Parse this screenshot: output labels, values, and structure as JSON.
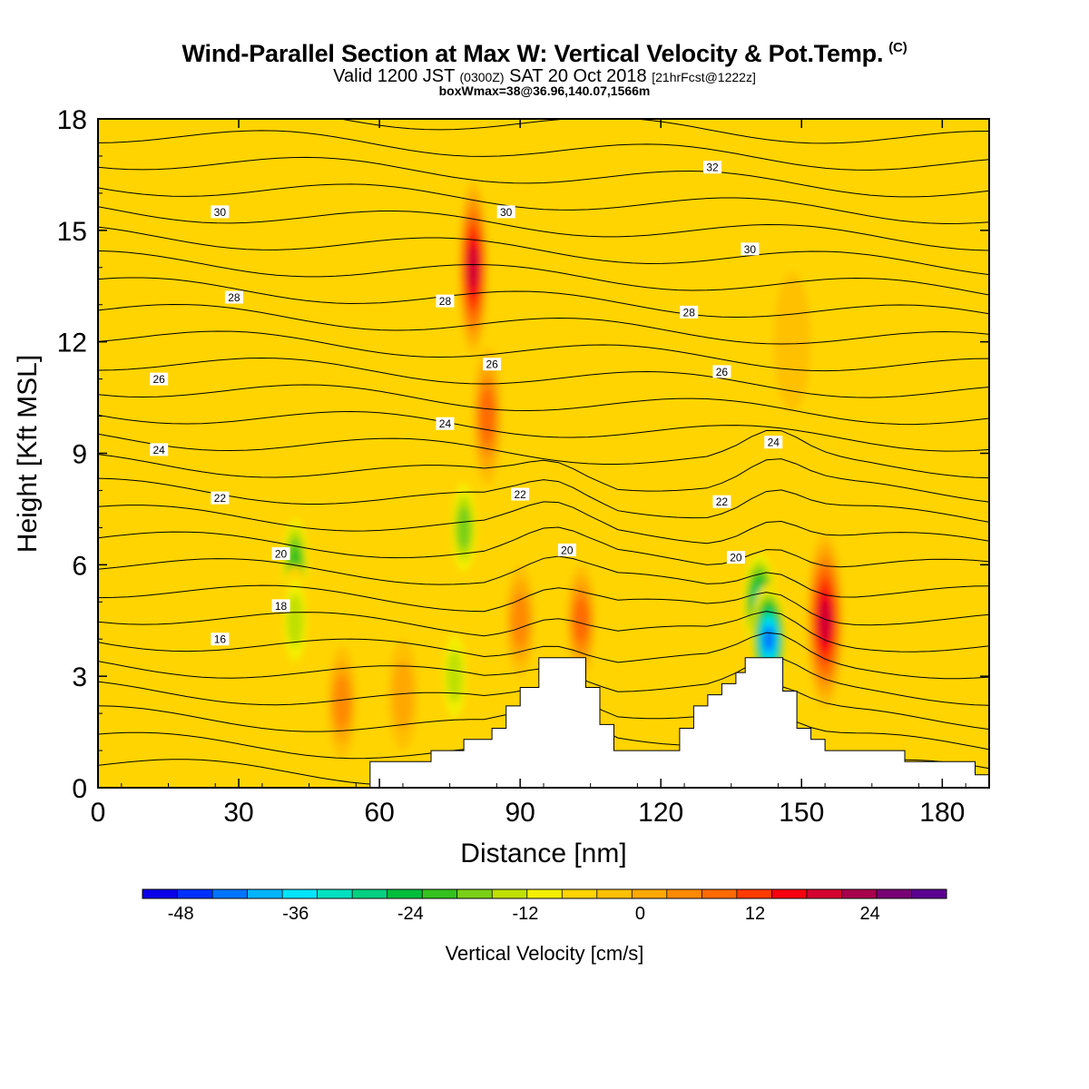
{
  "header": {
    "title_main": "Wind-Parallel Section at Max W: Vertical Velocity & Pot.Temp.",
    "title_c": "(C)",
    "valid_a": "Valid 1200 JST ",
    "valid_b": "(0300Z)",
    "valid_c": " SAT 20 Oct 2018 ",
    "valid_d": "[21hrFcst@1222z]",
    "subtitle": "boxWmax=38@36.96,140.07,1566m"
  },
  "chart_data": {
    "type": "heatmap",
    "xlabel": "Distance [nm]",
    "ylabel": "Height [Kft MSL]",
    "xlim": [
      0,
      190
    ],
    "ylim": [
      0,
      18
    ],
    "x_ticks": [
      0,
      30,
      60,
      90,
      120,
      150,
      180
    ],
    "y_ticks": [
      0,
      3,
      6,
      9,
      12,
      15,
      18
    ],
    "field": "Vertical Velocity [cm/s]",
    "velocity_cells": [
      {
        "x": 42,
        "y": 6.0,
        "w": -22
      },
      {
        "x": 42,
        "y": 4.5,
        "w": -14
      },
      {
        "x": 52,
        "y": 2.3,
        "w": 12
      },
      {
        "x": 65,
        "y": 2.5,
        "w": 8
      },
      {
        "x": 76,
        "y": 3.0,
        "w": -14
      },
      {
        "x": 78,
        "y": 7.0,
        "w": -16
      },
      {
        "x": 80,
        "y": 14.0,
        "w": 28
      },
      {
        "x": 83,
        "y": 10.0,
        "w": 18
      },
      {
        "x": 90,
        "y": 4.5,
        "w": 12
      },
      {
        "x": 103,
        "y": 4.5,
        "w": 16
      },
      {
        "x": 141,
        "y": 5.0,
        "w": -30
      },
      {
        "x": 143,
        "y": 4.0,
        "w": -44
      },
      {
        "x": 155,
        "y": 4.5,
        "w": 28
      },
      {
        "x": 148,
        "y": 12.0,
        "w": 6
      }
    ],
    "theta_labels": [
      {
        "x": 26,
        "y": 15.5,
        "text": "30"
      },
      {
        "x": 87,
        "y": 15.5,
        "text": "30"
      },
      {
        "x": 131,
        "y": 16.7,
        "text": "32"
      },
      {
        "x": 139,
        "y": 14.5,
        "text": "30"
      },
      {
        "x": 29,
        "y": 13.2,
        "text": "28"
      },
      {
        "x": 74,
        "y": 13.1,
        "text": "28"
      },
      {
        "x": 126,
        "y": 12.8,
        "text": "28"
      },
      {
        "x": 13,
        "y": 11.0,
        "text": "26"
      },
      {
        "x": 84,
        "y": 11.4,
        "text": "26"
      },
      {
        "x": 133,
        "y": 11.2,
        "text": "26"
      },
      {
        "x": 13,
        "y": 9.1,
        "text": "24"
      },
      {
        "x": 74,
        "y": 9.8,
        "text": "24"
      },
      {
        "x": 144,
        "y": 9.3,
        "text": "24"
      },
      {
        "x": 26,
        "y": 7.8,
        "text": "22"
      },
      {
        "x": 90,
        "y": 7.9,
        "text": "22"
      },
      {
        "x": 133,
        "y": 7.7,
        "text": "22"
      },
      {
        "x": 39,
        "y": 6.3,
        "text": "20"
      },
      {
        "x": 100,
        "y": 6.4,
        "text": "20"
      },
      {
        "x": 136,
        "y": 6.2,
        "text": "20"
      },
      {
        "x": 39,
        "y": 4.9,
        "text": "18"
      },
      {
        "x": 26,
        "y": 4.0,
        "text": "16"
      }
    ],
    "terrain": [
      [
        0,
        0
      ],
      [
        58,
        0
      ],
      [
        58,
        0.7
      ],
      [
        71,
        0.7
      ],
      [
        71,
        1.0
      ],
      [
        78,
        1.0
      ],
      [
        78,
        1.3
      ],
      [
        84,
        1.3
      ],
      [
        84,
        1.6
      ],
      [
        87,
        1.6
      ],
      [
        87,
        2.2
      ],
      [
        90,
        2.2
      ],
      [
        90,
        2.7
      ],
      [
        94,
        2.7
      ],
      [
        94,
        3.5
      ],
      [
        104,
        3.5
      ],
      [
        104,
        2.7
      ],
      [
        107,
        2.7
      ],
      [
        107,
        1.7
      ],
      [
        110,
        1.7
      ],
      [
        110,
        1.0
      ],
      [
        124,
        1.0
      ],
      [
        124,
        1.6
      ],
      [
        127,
        1.6
      ],
      [
        127,
        2.2
      ],
      [
        130,
        2.2
      ],
      [
        130,
        2.5
      ],
      [
        133,
        2.5
      ],
      [
        133,
        2.8
      ],
      [
        136,
        2.8
      ],
      [
        136,
        3.1
      ],
      [
        138,
        3.1
      ],
      [
        138,
        3.5
      ],
      [
        146,
        3.5
      ],
      [
        146,
        2.6
      ],
      [
        149,
        2.6
      ],
      [
        149,
        1.6
      ],
      [
        152,
        1.6
      ],
      [
        152,
        1.3
      ],
      [
        155,
        1.3
      ],
      [
        155,
        1.0
      ],
      [
        172,
        1.0
      ],
      [
        172,
        0.7
      ],
      [
        187,
        0.7
      ],
      [
        187,
        0.35
      ],
      [
        190,
        0.35
      ],
      [
        190,
        0
      ]
    ],
    "colorbar": {
      "label": "Vertical Velocity [cm/s]",
      "tick_labels": [
        "-48",
        "-36",
        "-24",
        "-12",
        "0",
        "12",
        "24"
      ],
      "tick_values": [
        -48,
        -36,
        -24,
        -12,
        0,
        12,
        24
      ],
      "vmin": -52,
      "vmax": 32,
      "step": 4,
      "colors": [
        "#0b00e8",
        "#0030ff",
        "#0074ff",
        "#00b4ff",
        "#00e4ff",
        "#00e0c0",
        "#00d080",
        "#00be3c",
        "#34c21e",
        "#7ad018",
        "#c0e000",
        "#f4ef00",
        "#ffd400",
        "#ffc000",
        "#ffa800",
        "#ff8a00",
        "#ff6a00",
        "#ff3c00",
        "#f80010",
        "#d40030",
        "#a8004c",
        "#780074",
        "#5a0090"
      ]
    }
  }
}
